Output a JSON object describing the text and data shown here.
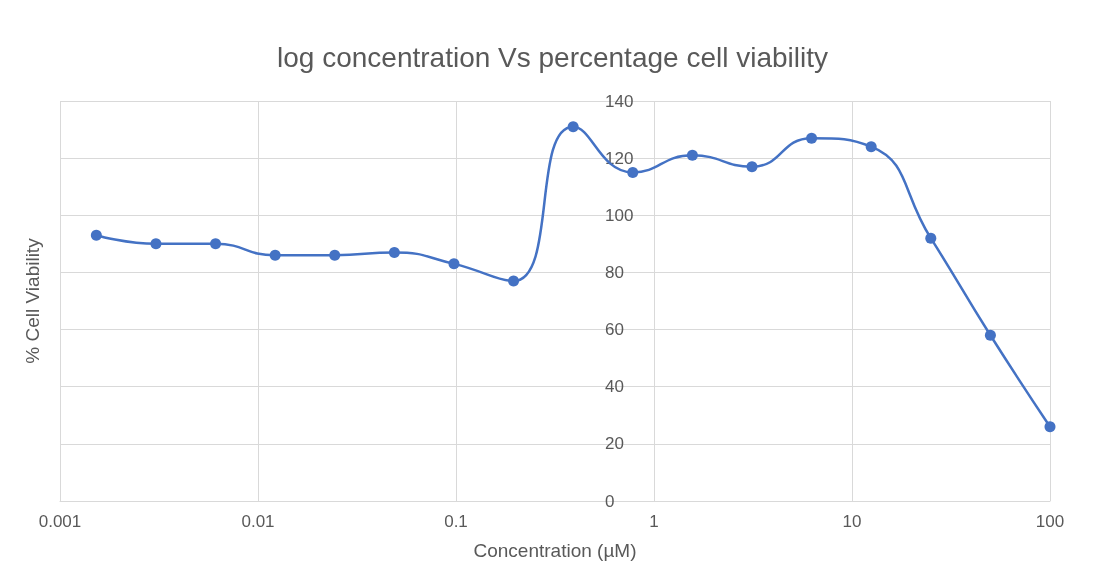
{
  "chart_data": {
    "type": "line",
    "title": "log concentration Vs percentage cell viability",
    "xlabel": "Concentration (µM)",
    "ylabel": "% Cell Viability",
    "log": "x",
    "grid": true,
    "marker": "circle",
    "line_style": "solid",
    "xlim": [
      0.001,
      100
    ],
    "xticks": [
      0.001,
      0.01,
      0.1,
      1,
      10,
      100
    ],
    "ylim": [
      0,
      140
    ],
    "yticks": [
      0,
      20,
      40,
      60,
      80,
      100,
      120,
      140
    ],
    "series": [
      {
        "color": "#4472c4",
        "x": [
          0.001526,
          0.003052,
          0.006104,
          0.01221,
          0.02441,
          0.04883,
          0.09766,
          0.1953,
          0.3906,
          0.7813,
          1.563,
          3.125,
          6.25,
          12.5,
          25,
          50,
          100
        ],
        "values": [
          93,
          90,
          90,
          86,
          86,
          87,
          83,
          77,
          131,
          115,
          121,
          117,
          127,
          124,
          92,
          58,
          26
        ]
      }
    ]
  }
}
